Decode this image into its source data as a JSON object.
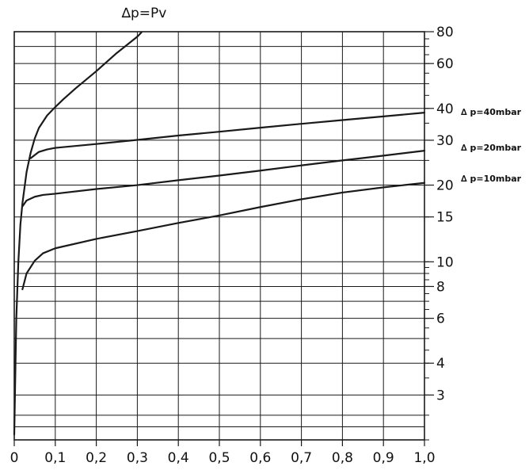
{
  "chart_data": {
    "type": "line",
    "title": "∆p=Pv",
    "x_ticks": [
      "0",
      "0,1",
      "0,2",
      "0,3",
      "0,4",
      "0,5",
      "0,6",
      "0,7",
      "0,8",
      "0,9",
      "1,0"
    ],
    "x_range": [
      0,
      1.0
    ],
    "y_scale": "log",
    "y_axis_side": "right",
    "y_range": [
      2,
      80
    ],
    "y_ticks": [
      {
        "value": 3,
        "label": "3"
      },
      {
        "value": 4,
        "label": "4"
      },
      {
        "value": 6,
        "label": "6"
      },
      {
        "value": 8,
        "label": "8"
      },
      {
        "value": 10,
        "label": "10"
      },
      {
        "value": 15,
        "label": "15"
      },
      {
        "value": 20,
        "label": "20"
      },
      {
        "value": 30,
        "label": "30"
      },
      {
        "value": 40,
        "label": "40"
      },
      {
        "value": 60,
        "label": "60"
      },
      {
        "value": 80,
        "label": "80"
      }
    ],
    "grid": true,
    "colors": {
      "line": "#1a1a1a",
      "grid": "#1a1a1a",
      "background": "#ffffff"
    },
    "series": [
      {
        "x": [
          0.0,
          0.005,
          0.01,
          0.015,
          0.02,
          0.03,
          0.04,
          0.05,
          0.06,
          0.08,
          0.1,
          0.12,
          0.15,
          0.2,
          0.25,
          0.3,
          0.31
        ],
        "y": [
          2.1,
          6.0,
          10.0,
          14.0,
          17.0,
          22.5,
          26.8,
          30.5,
          33.5,
          37.5,
          40.5,
          43.5,
          48.0,
          56.0,
          66.0,
          76.5,
          79.5
        ]
      },
      {
        "label": "∆ p=40mbar",
        "x": [
          0.04,
          0.06,
          0.08,
          0.1,
          0.2,
          0.3,
          0.4,
          0.5,
          0.6,
          0.7,
          0.8,
          0.9,
          1.0
        ],
        "y": [
          25.5,
          27.0,
          27.6,
          28.0,
          29.0,
          30.1,
          31.3,
          32.4,
          33.6,
          34.8,
          36.0,
          37.2,
          38.5
        ]
      },
      {
        "label": "∆ p=20mbar",
        "x": [
          0.02,
          0.03,
          0.05,
          0.07,
          0.1,
          0.2,
          0.3,
          0.4,
          0.5,
          0.6,
          0.7,
          0.8,
          0.9,
          1.0
        ],
        "y": [
          16.5,
          17.4,
          18.0,
          18.3,
          18.5,
          19.3,
          20.0,
          20.9,
          21.8,
          22.8,
          23.9,
          25.0,
          26.1,
          27.3
        ]
      },
      {
        "label": "∆ p=10mbar",
        "x": [
          0.02,
          0.03,
          0.05,
          0.07,
          0.1,
          0.2,
          0.3,
          0.4,
          0.5,
          0.6,
          0.7,
          0.8,
          0.9,
          1.0
        ],
        "y": [
          7.8,
          9.0,
          10.1,
          10.8,
          11.3,
          12.3,
          13.2,
          14.2,
          15.2,
          16.4,
          17.6,
          18.7,
          19.6,
          20.4
        ]
      }
    ]
  }
}
